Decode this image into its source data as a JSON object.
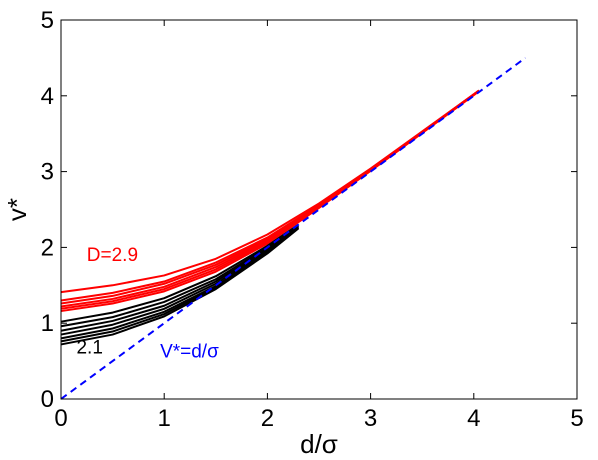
{
  "chart_data": {
    "type": "line",
    "xlabel": "d/σ",
    "ylabel": "v*",
    "xlim": [
      0,
      5
    ],
    "ylim": [
      0,
      5
    ],
    "xticks": [
      "0",
      "1",
      "2",
      "3",
      "4",
      "5"
    ],
    "yticks": [
      "0",
      "1",
      "2",
      "3",
      "4",
      "5"
    ],
    "grid": false,
    "annotations": [
      {
        "id": "label-D",
        "text": "D=2.9",
        "color": "#ff0000",
        "at": [
          0.25,
          1.82
        ]
      },
      {
        "id": "label-21",
        "text": "2.1",
        "color": "#000000",
        "at": [
          0.15,
          0.6
        ]
      },
      {
        "id": "label-ref",
        "text": "V*=d/σ",
        "color": "#0000ff",
        "at": [
          0.96,
          0.55
        ]
      }
    ],
    "series": [
      {
        "group": "red",
        "color": "#ff0000",
        "x": [
          0,
          0.5,
          1,
          1.5,
          2,
          2.5,
          3,
          3.5,
          4,
          4.05
        ],
        "y": [
          1.41,
          1.5,
          1.63,
          1.85,
          2.17,
          2.58,
          3.04,
          3.53,
          4.02,
          4.07
        ]
      },
      {
        "group": "red",
        "color": "#ff0000",
        "x": [
          0,
          0.5,
          1,
          1.5,
          2,
          2.5,
          3,
          3.5,
          4,
          4.05
        ],
        "y": [
          1.3,
          1.4,
          1.55,
          1.8,
          2.13,
          2.56,
          3.03,
          3.52,
          4.02,
          4.07
        ]
      },
      {
        "group": "red",
        "color": "#ff0000",
        "x": [
          0,
          0.5,
          1,
          1.5,
          2,
          2.5,
          3,
          3.5,
          4,
          4.05
        ],
        "y": [
          1.26,
          1.36,
          1.52,
          1.77,
          2.11,
          2.55,
          3.02,
          3.52,
          4.02,
          4.07
        ]
      },
      {
        "group": "red",
        "color": "#ff0000",
        "x": [
          0,
          0.5,
          1,
          1.5,
          2,
          2.5,
          3,
          3.5,
          4,
          4.05
        ],
        "y": [
          1.22,
          1.32,
          1.48,
          1.74,
          2.09,
          2.54,
          3.02,
          3.52,
          4.02,
          4.07
        ]
      },
      {
        "group": "red",
        "color": "#ff0000",
        "x": [
          0,
          0.5,
          1,
          1.5,
          2,
          2.5,
          3,
          3.5,
          4,
          4.05
        ],
        "y": [
          1.19,
          1.29,
          1.45,
          1.71,
          2.07,
          2.53,
          3.01,
          3.51,
          4.01,
          4.06
        ]
      },
      {
        "group": "red",
        "color": "#ff0000",
        "x": [
          0,
          0.5,
          1,
          1.5,
          2,
          2.5,
          3,
          3.5,
          4,
          4.05
        ],
        "y": [
          1.16,
          1.26,
          1.42,
          1.68,
          2.05,
          2.52,
          3.01,
          3.51,
          4.01,
          4.06
        ]
      },
      {
        "group": "black",
        "color": "#000000",
        "x": [
          0,
          0.5,
          1,
          1.5,
          2,
          2.3
        ],
        "y": [
          1.02,
          1.14,
          1.33,
          1.62,
          2.02,
          2.3
        ]
      },
      {
        "group": "black",
        "color": "#000000",
        "x": [
          0,
          0.5,
          1,
          1.5,
          2,
          2.3
        ],
        "y": [
          0.96,
          1.08,
          1.28,
          1.58,
          2.0,
          2.29
        ]
      },
      {
        "group": "black",
        "color": "#000000",
        "x": [
          0,
          0.5,
          1,
          1.5,
          2,
          2.3
        ],
        "y": [
          0.9,
          1.03,
          1.23,
          1.55,
          1.98,
          2.28
        ]
      },
      {
        "group": "black",
        "color": "#000000",
        "x": [
          0,
          0.5,
          1,
          1.5,
          2,
          2.3
        ],
        "y": [
          0.85,
          0.98,
          1.19,
          1.52,
          1.96,
          2.27
        ]
      },
      {
        "group": "black",
        "color": "#000000",
        "x": [
          0,
          0.5,
          1,
          1.5,
          2,
          2.3
        ],
        "y": [
          0.8,
          0.93,
          1.15,
          1.49,
          1.94,
          2.26
        ]
      },
      {
        "group": "black",
        "color": "#000000",
        "x": [
          0,
          0.5,
          1,
          1.5,
          2,
          2.3
        ],
        "y": [
          0.76,
          0.89,
          1.12,
          1.47,
          1.93,
          2.26
        ]
      },
      {
        "group": "black",
        "color": "#000000",
        "x": [
          0,
          0.5,
          1,
          1.5,
          2,
          2.3
        ],
        "y": [
          0.72,
          0.85,
          1.09,
          1.45,
          1.92,
          2.25
        ]
      },
      {
        "group": "reference",
        "color": "#0000ff",
        "dashed": true,
        "x": [
          0,
          4.5
        ],
        "y": [
          0,
          4.5
        ]
      }
    ]
  }
}
